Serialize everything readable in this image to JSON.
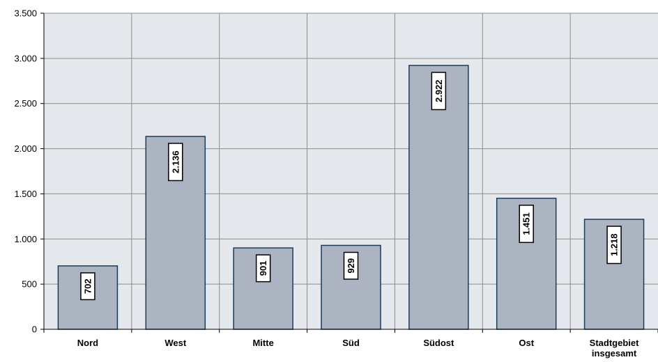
{
  "chart_data": {
    "type": "bar",
    "categories": [
      "Nord",
      "West",
      "Mitte",
      "Süd",
      "Südost",
      "Ost",
      [
        "Stadtgebiet",
        "insgesamt"
      ]
    ],
    "values": [
      702,
      2136,
      901,
      929,
      2922,
      1451,
      1218
    ],
    "value_labels": [
      "702",
      "2.136",
      "901",
      "929",
      "2.922",
      "1.451",
      "1.218"
    ],
    "y_ticks": [
      0,
      500,
      1000,
      1500,
      2000,
      2500,
      3000,
      3500
    ],
    "y_tick_labels": [
      "0",
      "500",
      "1.000",
      "1.500",
      "2.000",
      "2.500",
      "3.000",
      "3.500"
    ],
    "ylim": [
      0,
      3500
    ],
    "grid": true,
    "title": "",
    "xlabel": "",
    "ylabel": "",
    "colors": {
      "plot_background": "#e5e8ec",
      "bar_fill": "#adb4c1",
      "bar_stroke": "#1b3b5c",
      "grid": "#8c8c8c",
      "axis": "#000000",
      "label_box": "#ffffff"
    }
  }
}
